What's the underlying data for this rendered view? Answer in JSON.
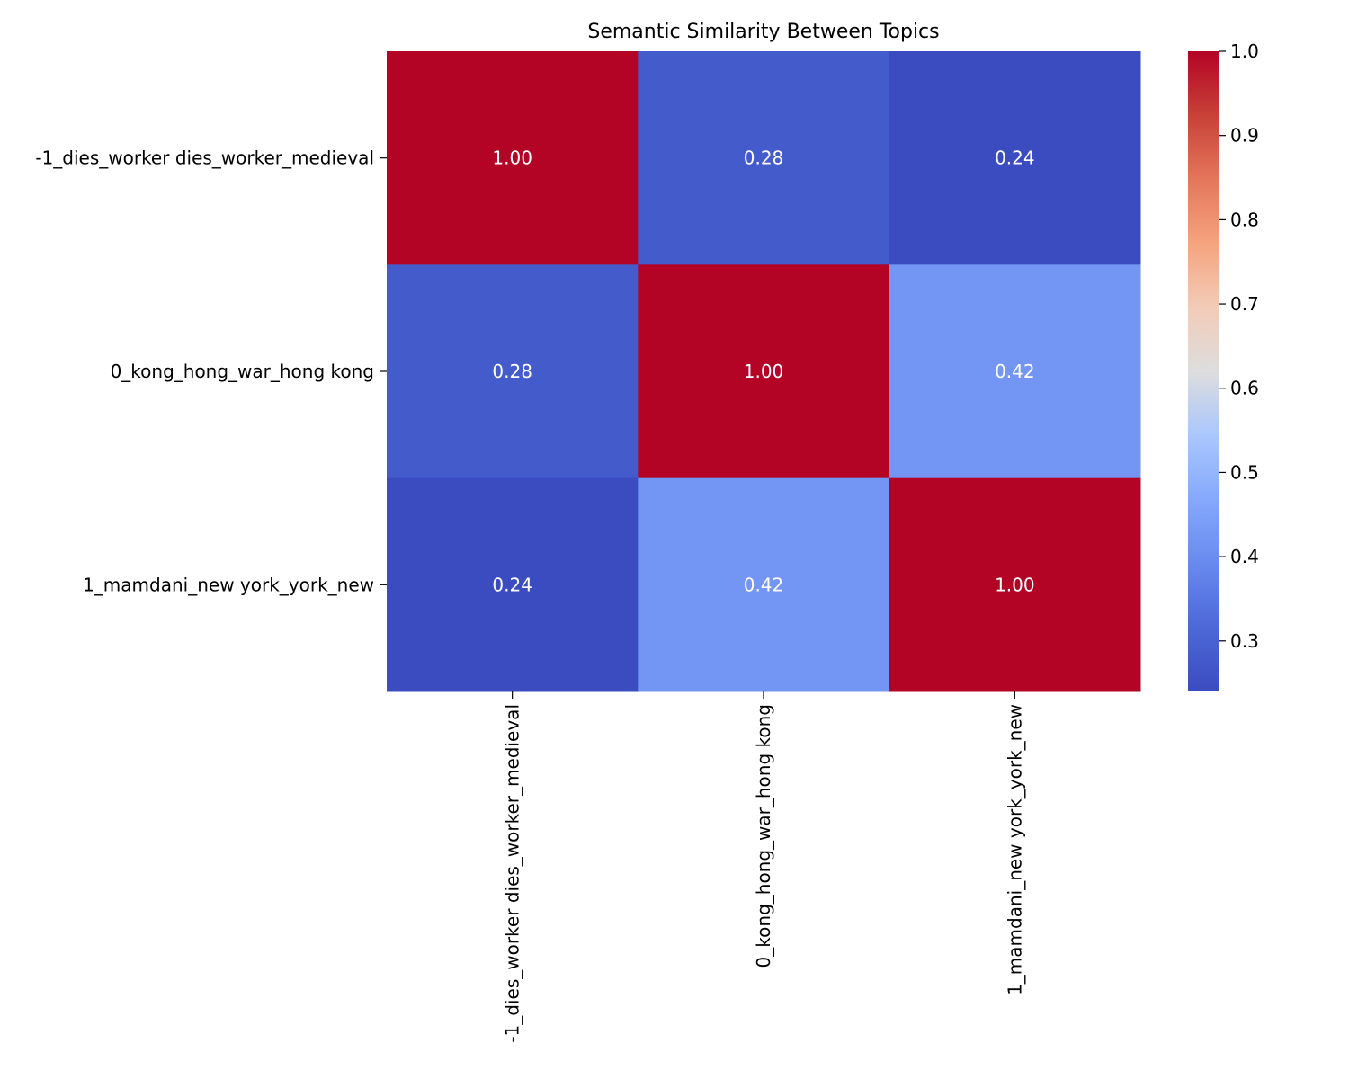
{
  "chart_data": {
    "type": "heatmap",
    "title": "Semantic Similarity Between Topics",
    "xlabel": "",
    "ylabel": "",
    "row_labels": [
      "-1_dies_worker dies_worker_medieval",
      "0_kong_hong_war_hong kong",
      "1_mamdani_new york_york_new"
    ],
    "col_labels": [
      "-1_dies_worker dies_worker_medieval",
      "0_kong_hong_war_hong kong",
      "1_mamdani_new york_york_new"
    ],
    "values": [
      [
        1.0,
        0.28,
        0.24
      ],
      [
        0.28,
        1.0,
        0.42
      ],
      [
        0.24,
        0.42,
        1.0
      ]
    ],
    "annotation_format": "0.00",
    "colormap": "coolwarm",
    "colorbar": {
      "range": [
        0.24,
        1.0
      ],
      "ticks": [
        "0.3",
        "0.4",
        "0.5",
        "0.6",
        "0.7",
        "0.8",
        "0.9",
        "1.0"
      ],
      "placement": "right"
    },
    "grid": false
  }
}
